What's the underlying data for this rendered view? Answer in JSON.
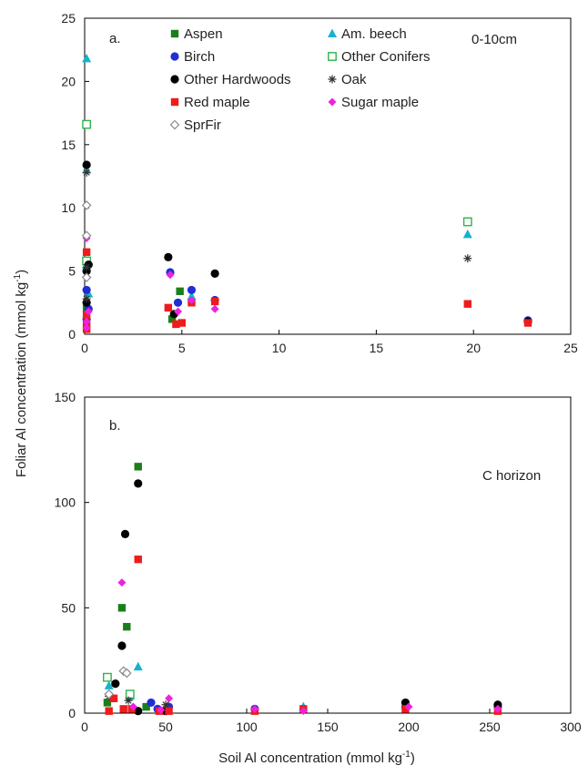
{
  "figure": {
    "ylabel_main": "Foliar Al concentration (mmol kg",
    "ylabel_sup": "-1",
    "ylabel_close": ")",
    "xlabel_main": "Soil Al concentration (mmol kg",
    "xlabel_sup": "-1",
    "xlabel_close": ")"
  },
  "species": [
    {
      "name": "Aspen",
      "color": "#1a7f1a",
      "marker": "square-filled"
    },
    {
      "name": "Am. beech",
      "color": "#17b3cc",
      "marker": "triangle-filled"
    },
    {
      "name": "Birch",
      "color": "#1f2ed6",
      "marker": "circle-filled"
    },
    {
      "name": "Other Conifers",
      "color": "#2fb34a",
      "marker": "square-open"
    },
    {
      "name": "Other Hardwoods",
      "color": "#000000",
      "marker": "circle-filled"
    },
    {
      "name": "Oak",
      "color": "#333333",
      "marker": "asterisk"
    },
    {
      "name": "Red maple",
      "color": "#ee1c1c",
      "marker": "square-filled"
    },
    {
      "name": "Sugar maple",
      "color": "#ee22dd",
      "marker": "diamond-filled"
    },
    {
      "name": "SprFir",
      "color": "#8a8a8a",
      "marker": "diamond-open"
    }
  ],
  "chart_data": [
    {
      "type": "scatter",
      "panel_label": "a.",
      "annotation": "0-10cm",
      "xlim": [
        0,
        25
      ],
      "ylim": [
        0,
        25
      ],
      "xticks": [
        0,
        5,
        10,
        15,
        20,
        25
      ],
      "yticks": [
        0,
        5,
        10,
        15,
        20,
        25
      ],
      "grid": false,
      "legend": "top",
      "series": [
        {
          "name": "Aspen",
          "points": [
            [
              0.1,
              2.0
            ],
            [
              4.9,
              3.4
            ],
            [
              4.5,
              1.2
            ]
          ]
        },
        {
          "name": "Am. beech",
          "points": [
            [
              0.1,
              21.8
            ],
            [
              0.1,
              13.0
            ],
            [
              0.1,
              5.5
            ],
            [
              19.7,
              7.9
            ],
            [
              0.2,
              3.2
            ],
            [
              5.5,
              3.0
            ]
          ]
        },
        {
          "name": "Birch",
          "points": [
            [
              0.1,
              3.5
            ],
            [
              0.2,
              2.0
            ],
            [
              4.4,
              4.9
            ],
            [
              4.8,
              2.5
            ],
            [
              5.5,
              3.5
            ],
            [
              6.7,
              2.7
            ],
            [
              0.1,
              1.2
            ],
            [
              22.8,
              1.1
            ]
          ]
        },
        {
          "name": "Other Conifers",
          "points": [
            [
              0.1,
              16.6
            ],
            [
              19.7,
              8.9
            ],
            [
              0.1,
              5.8
            ]
          ]
        },
        {
          "name": "Other Hardwoods",
          "points": [
            [
              0.1,
              13.4
            ],
            [
              0.1,
              5.0
            ],
            [
              0.2,
              5.5
            ],
            [
              4.3,
              6.1
            ],
            [
              6.7,
              4.8
            ],
            [
              0.1,
              2.5
            ],
            [
              4.6,
              1.6
            ],
            [
              22.8,
              1.0
            ]
          ]
        },
        {
          "name": "Oak",
          "points": [
            [
              0.1,
              12.8
            ],
            [
              0.1,
              2.8
            ],
            [
              19.7,
              6.0
            ],
            [
              0.1,
              5.3
            ]
          ]
        },
        {
          "name": "Red maple",
          "points": [
            [
              0.1,
              6.5
            ],
            [
              0.1,
              0.7
            ],
            [
              0.1,
              1.5
            ],
            [
              4.3,
              2.1
            ],
            [
              4.7,
              0.8
            ],
            [
              5.0,
              0.9
            ],
            [
              5.5,
              2.5
            ],
            [
              6.7,
              2.6
            ],
            [
              19.7,
              2.4
            ],
            [
              22.8,
              0.9
            ],
            [
              0.1,
              0.4
            ]
          ]
        },
        {
          "name": "Sugar maple",
          "points": [
            [
              0.1,
              7.6
            ],
            [
              0.1,
              1.0
            ],
            [
              0.2,
              1.8
            ],
            [
              4.4,
              4.7
            ],
            [
              4.8,
              1.8
            ],
            [
              6.7,
              2.0
            ],
            [
              5.5,
              2.7
            ],
            [
              0.1,
              0.5
            ]
          ]
        },
        {
          "name": "SprFir",
          "points": [
            [
              0.1,
              10.2
            ],
            [
              0.1,
              7.8
            ],
            [
              0.1,
              4.5
            ]
          ]
        }
      ]
    },
    {
      "type": "scatter",
      "panel_label": "b.",
      "annotation": "C horizon",
      "xlim": [
        0,
        300
      ],
      "ylim": [
        0,
        150
      ],
      "xticks": [
        0,
        50,
        100,
        150,
        200,
        250,
        300
      ],
      "yticks": [
        0,
        50,
        100,
        150
      ],
      "grid": false,
      "series": [
        {
          "name": "Aspen",
          "points": [
            [
              33.0,
              117.0
            ],
            [
              23.0,
              50.0
            ],
            [
              26.0,
              41.0
            ],
            [
              14.0,
              5.0
            ],
            [
              38.0,
              3.0
            ]
          ]
        },
        {
          "name": "Am. beech",
          "points": [
            [
              33.0,
              22.0
            ],
            [
              15.0,
              13.0
            ],
            [
              28.0,
              8.0
            ],
            [
              135.0,
              3.0
            ],
            [
              198.0,
              4.0
            ]
          ]
        },
        {
          "name": "Birch",
          "points": [
            [
              41.0,
              5.0
            ],
            [
              52.0,
              3.0
            ],
            [
              105.0,
              2.0
            ],
            [
              198.0,
              3.0
            ],
            [
              255.0,
              3.0
            ],
            [
              45.0,
              2.0
            ]
          ]
        },
        {
          "name": "Other Conifers",
          "points": [
            [
              14.0,
              17.0
            ],
            [
              28.0,
              9.0
            ]
          ]
        },
        {
          "name": "Other Hardwoods",
          "points": [
            [
              33.0,
              109.0
            ],
            [
              25.0,
              85.0
            ],
            [
              23.0,
              32.0
            ],
            [
              19.0,
              14.0
            ],
            [
              33.0,
              1.0
            ],
            [
              198.0,
              5.0
            ],
            [
              255.0,
              4.0
            ],
            [
              50.0,
              1.0
            ]
          ]
        },
        {
          "name": "Oak",
          "points": [
            [
              15.0,
              8.0
            ],
            [
              50.0,
              4.0
            ],
            [
              27.0,
              6.0
            ]
          ]
        },
        {
          "name": "Red maple",
          "points": [
            [
              33.0,
              73.0
            ],
            [
              18.0,
              7.0
            ],
            [
              24.0,
              2.0
            ],
            [
              29.0,
              2.0
            ],
            [
              46.0,
              1.0
            ],
            [
              52.0,
              1.0
            ],
            [
              105.0,
              1.0
            ],
            [
              135.0,
              2.0
            ],
            [
              198.0,
              2.0
            ],
            [
              255.0,
              1.0
            ],
            [
              15.0,
              1.0
            ]
          ]
        },
        {
          "name": "Sugar maple",
          "points": [
            [
              23.0,
              62.0
            ],
            [
              52.0,
              7.0
            ],
            [
              30.0,
              3.0
            ],
            [
              105.0,
              2.0
            ],
            [
              135.0,
              1.0
            ],
            [
              200.0,
              3.0
            ],
            [
              255.0,
              2.0
            ],
            [
              47.0,
              1.5
            ]
          ]
        },
        {
          "name": "SprFir",
          "points": [
            [
              24.0,
              20.0
            ],
            [
              26.0,
              19.0
            ],
            [
              15.0,
              9.0
            ]
          ]
        }
      ]
    }
  ]
}
